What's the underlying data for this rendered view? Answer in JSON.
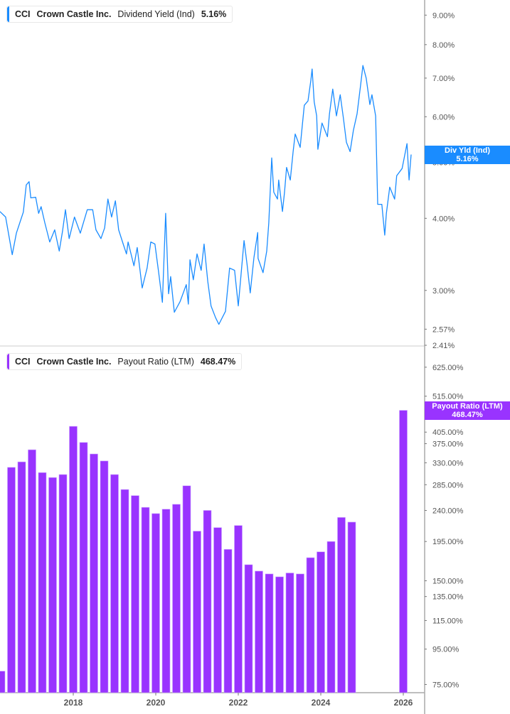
{
  "colors": {
    "yield": "#1a8cff",
    "payout": "#9933ff",
    "axis": "#aaaaaa"
  },
  "legend_top": {
    "ticker": "CCI",
    "company": "Crown Castle Inc.",
    "metric": "Dividend Yield (Ind)",
    "value": "5.16%"
  },
  "legend_bottom": {
    "ticker": "CCI",
    "company": "Crown Castle Inc.",
    "metric": "Payout Ratio (LTM)",
    "value": "468.47%"
  },
  "badge_top": {
    "label": "Div Yld (Ind)",
    "value": "5.16%"
  },
  "badge_bottom": {
    "label": "Payout Ratio (LTM)",
    "value": "468.47%"
  },
  "chart_data": [
    {
      "type": "line",
      "series": [
        {
          "name": "Dividend Yield (Ind)",
          "color": "#1a8cff"
        }
      ],
      "x_unit": "year",
      "y_scale": "log",
      "ylim": [
        2.41,
        9.56
      ],
      "xlim": [
        2016.22,
        2026.6
      ],
      "y_ticks": [
        9.0,
        8.0,
        7.0,
        6.0,
        5.0,
        4.0,
        3.0,
        2.57,
        2.41
      ],
      "y_tick_labels": [
        "9.00%",
        "8.00%",
        "7.00%",
        "6.00%",
        "5.00%",
        "4.00%",
        "3.00%",
        "2.57%",
        "2.41%"
      ],
      "points": [
        [
          2016.22,
          4.11
        ],
        [
          2016.36,
          4.02
        ],
        [
          2016.52,
          3.46
        ],
        [
          2016.62,
          3.77
        ],
        [
          2016.79,
          4.1
        ],
        [
          2016.86,
          4.57
        ],
        [
          2016.93,
          4.63
        ],
        [
          2016.97,
          4.34
        ],
        [
          2017.09,
          4.35
        ],
        [
          2017.16,
          4.08
        ],
        [
          2017.22,
          4.19
        ],
        [
          2017.31,
          3.93
        ],
        [
          2017.43,
          3.64
        ],
        [
          2017.55,
          3.82
        ],
        [
          2017.66,
          3.51
        ],
        [
          2017.74,
          3.8
        ],
        [
          2017.81,
          4.14
        ],
        [
          2017.9,
          3.69
        ],
        [
          2018.03,
          4.02
        ],
        [
          2018.17,
          3.77
        ],
        [
          2018.34,
          4.14
        ],
        [
          2018.47,
          4.14
        ],
        [
          2018.55,
          3.82
        ],
        [
          2018.67,
          3.69
        ],
        [
          2018.76,
          3.85
        ],
        [
          2018.84,
          4.32
        ],
        [
          2018.93,
          4.02
        ],
        [
          2019.02,
          4.29
        ],
        [
          2019.1,
          3.82
        ],
        [
          2019.21,
          3.61
        ],
        [
          2019.29,
          3.47
        ],
        [
          2019.33,
          3.64
        ],
        [
          2019.47,
          3.31
        ],
        [
          2019.55,
          3.56
        ],
        [
          2019.67,
          3.03
        ],
        [
          2019.79,
          3.28
        ],
        [
          2019.88,
          3.64
        ],
        [
          2019.98,
          3.61
        ],
        [
          2020.07,
          3.22
        ],
        [
          2020.16,
          2.86
        ],
        [
          2020.24,
          4.08
        ],
        [
          2020.31,
          2.96
        ],
        [
          2020.36,
          3.17
        ],
        [
          2020.45,
          2.75
        ],
        [
          2020.59,
          2.87
        ],
        [
          2020.74,
          3.07
        ],
        [
          2020.79,
          2.84
        ],
        [
          2020.83,
          3.39
        ],
        [
          2020.91,
          3.13
        ],
        [
          2021.0,
          3.47
        ],
        [
          2021.1,
          3.25
        ],
        [
          2021.17,
          3.61
        ],
        [
          2021.26,
          3.11
        ],
        [
          2021.34,
          2.82
        ],
        [
          2021.45,
          2.69
        ],
        [
          2021.53,
          2.62
        ],
        [
          2021.69,
          2.76
        ],
        [
          2021.79,
          3.28
        ],
        [
          2021.91,
          3.25
        ],
        [
          2022.0,
          2.82
        ],
        [
          2022.14,
          3.66
        ],
        [
          2022.21,
          3.34
        ],
        [
          2022.29,
          2.97
        ],
        [
          2022.38,
          3.42
        ],
        [
          2022.47,
          3.78
        ],
        [
          2022.48,
          3.41
        ],
        [
          2022.6,
          3.22
        ],
        [
          2022.69,
          3.51
        ],
        [
          2022.74,
          3.93
        ],
        [
          2022.81,
          5.09
        ],
        [
          2022.86,
          4.44
        ],
        [
          2022.95,
          4.32
        ],
        [
          2022.98,
          4.66
        ],
        [
          2023.07,
          4.11
        ],
        [
          2023.12,
          4.44
        ],
        [
          2023.17,
          4.9
        ],
        [
          2023.26,
          4.66
        ],
        [
          2023.33,
          5.22
        ],
        [
          2023.38,
          5.6
        ],
        [
          2023.5,
          5.31
        ],
        [
          2023.55,
          5.78
        ],
        [
          2023.6,
          6.28
        ],
        [
          2023.69,
          6.39
        ],
        [
          2023.76,
          6.95
        ],
        [
          2023.79,
          7.26
        ],
        [
          2023.84,
          6.37
        ],
        [
          2023.9,
          6.02
        ],
        [
          2023.93,
          5.27
        ],
        [
          2024.03,
          5.85
        ],
        [
          2024.16,
          5.54
        ],
        [
          2024.21,
          6.07
        ],
        [
          2024.29,
          6.7
        ],
        [
          2024.38,
          6.02
        ],
        [
          2024.47,
          6.55
        ],
        [
          2024.55,
          5.95
        ],
        [
          2024.62,
          5.42
        ],
        [
          2024.71,
          5.22
        ],
        [
          2024.79,
          5.68
        ],
        [
          2024.88,
          6.07
        ],
        [
          2024.97,
          6.86
        ],
        [
          2025.02,
          7.36
        ],
        [
          2025.1,
          7.0
        ],
        [
          2025.19,
          6.3
        ],
        [
          2025.24,
          6.55
        ],
        [
          2025.33,
          6.02
        ],
        [
          2025.38,
          4.23
        ],
        [
          2025.48,
          4.23
        ],
        [
          2025.55,
          3.74
        ],
        [
          2025.59,
          4.08
        ],
        [
          2025.67,
          4.53
        ],
        [
          2025.79,
          4.32
        ],
        [
          2025.84,
          4.74
        ],
        [
          2025.97,
          4.88
        ],
        [
          2026.09,
          5.39
        ],
        [
          2026.14,
          4.66
        ],
        [
          2026.19,
          5.16
        ]
      ]
    },
    {
      "type": "bar",
      "series": [
        {
          "name": "Payout Ratio (LTM)",
          "color": "#9933ff"
        }
      ],
      "x_unit": "year",
      "y_scale": "log",
      "ylim": [
        71,
        710
      ],
      "y_ticks": [
        625,
        515,
        405,
        375,
        330,
        285,
        240,
        195,
        150,
        135,
        115,
        95,
        75
      ],
      "y_tick_labels": [
        "625.00%",
        "515.00%",
        "405.00%",
        "375.00%",
        "330.00%",
        "285.00%",
        "240.00%",
        "195.00%",
        "150.00%",
        "135.00%",
        "115.00%",
        "95.00%",
        "75.00%"
      ],
      "x_ticks": [
        2018,
        2020,
        2022,
        2024,
        2026
      ],
      "x_tick_labels": [
        "2018",
        "2020",
        "2022",
        "2024",
        "2026"
      ],
      "x": [
        2016.25,
        2016.5,
        2016.75,
        2017.0,
        2017.25,
        2017.5,
        2017.75,
        2018.0,
        2018.25,
        2018.5,
        2018.75,
        2019.0,
        2019.25,
        2019.5,
        2019.75,
        2020.0,
        2020.25,
        2020.5,
        2020.75,
        2021.0,
        2021.25,
        2021.5,
        2021.75,
        2022.0,
        2022.25,
        2022.5,
        2022.75,
        2023.0,
        2023.25,
        2023.5,
        2023.75,
        2024.0,
        2024.25,
        2024.5,
        2024.75,
        2026.0
      ],
      "values": [
        82,
        320,
        332,
        360,
        309,
        299,
        305,
        421,
        378,
        350,
        334,
        305,
        276,
        265,
        245,
        235,
        242,
        250,
        283,
        209,
        240,
        214,
        185,
        217,
        167,
        160,
        157,
        154,
        158,
        157,
        175,
        182,
        195,
        229,
        222,
        468.47
      ]
    }
  ]
}
